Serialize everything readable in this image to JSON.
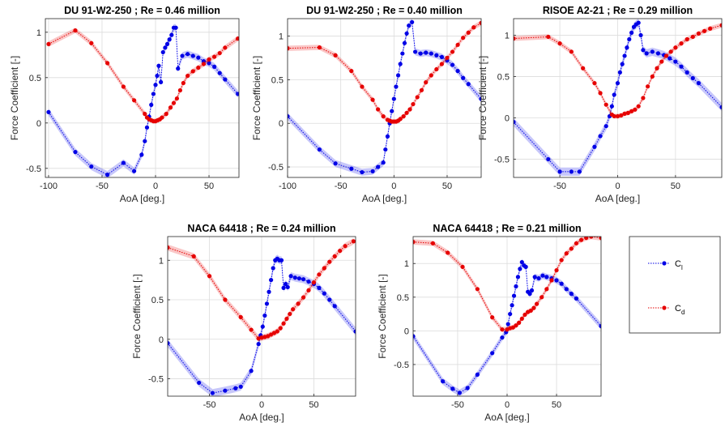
{
  "legend": {
    "entries": [
      {
        "label": "C",
        "sub": "l",
        "color": "#0000e6"
      },
      {
        "label": "C",
        "sub": "d",
        "color": "#e60000"
      }
    ]
  },
  "chart_data": [
    {
      "type": "line",
      "title": "DU 91-W2-250 ; Re = 0.46 million",
      "xlabel": "AoA [deg.]",
      "ylabel": "Force Coefficient [-]",
      "xlim": [
        -103,
        78
      ],
      "ylim": [
        -0.6,
        1.15
      ],
      "xticks": [
        -100,
        -50,
        0,
        50
      ],
      "yticks": [
        -0.5,
        0,
        0.5,
        1
      ],
      "grid": true,
      "series": [
        {
          "name": "Cl",
          "color": "#0000e6",
          "x": [
            -100,
            -75,
            -60,
            -45,
            -30,
            -20,
            -13,
            -10,
            -8,
            -6,
            -4,
            -2,
            0,
            1.5,
            3,
            5,
            7,
            9,
            11,
            13,
            15,
            17,
            19,
            21,
            25,
            30,
            35,
            40,
            45,
            50,
            55,
            60,
            65,
            77
          ],
          "y": [
            0.12,
            -0.32,
            -0.48,
            -0.57,
            -0.44,
            -0.53,
            -0.35,
            -0.2,
            -0.05,
            0.07,
            0.2,
            0.32,
            0.42,
            0.52,
            0.63,
            0.45,
            0.78,
            0.83,
            0.87,
            0.92,
            0.97,
            1.05,
            1.05,
            0.6,
            0.74,
            0.76,
            0.74,
            0.72,
            0.68,
            0.66,
            0.62,
            0.55,
            0.48,
            0.32
          ],
          "band": 0.04
        },
        {
          "name": "Cd",
          "color": "#e60000",
          "x": [
            -100,
            -75,
            -60,
            -45,
            -30,
            -20,
            -10,
            -8,
            -6,
            -4,
            -2,
            0,
            2,
            4,
            6,
            10,
            14,
            17,
            20,
            23,
            26,
            30,
            35,
            40,
            45,
            50,
            55,
            60,
            65,
            77
          ],
          "y": [
            0.87,
            1.02,
            0.88,
            0.66,
            0.4,
            0.25,
            0.1,
            0.06,
            0.04,
            0.03,
            0.02,
            0.02,
            0.03,
            0.04,
            0.06,
            0.1,
            0.17,
            0.22,
            0.27,
            0.36,
            0.44,
            0.52,
            0.57,
            0.61,
            0.65,
            0.7,
            0.73,
            0.77,
            0.83,
            0.93
          ],
          "band": 0.03
        }
      ]
    },
    {
      "type": "line",
      "title": "DU 91-W2-250 ; Re = 0.40 million",
      "xlabel": "AoA [deg.]",
      "ylabel": "Force Coefficient [-]",
      "xlim": [
        -100,
        82
      ],
      "ylim": [
        -0.62,
        1.2
      ],
      "xticks": [
        -100,
        -50,
        0,
        50
      ],
      "yticks": [
        -0.5,
        0,
        0.5,
        1
      ],
      "grid": true,
      "series": [
        {
          "name": "Cl",
          "color": "#0000e6",
          "x": [
            -100,
            -70,
            -55,
            -40,
            -30,
            -20,
            -15,
            -10,
            -8,
            -6,
            -4,
            -2,
            0,
            2,
            4,
            6,
            8,
            10,
            12,
            14,
            17,
            20,
            25,
            30,
            35,
            40,
            45,
            50,
            55,
            60,
            65,
            70,
            82
          ],
          "y": [
            0.08,
            -0.3,
            -0.46,
            -0.52,
            -0.56,
            -0.55,
            -0.5,
            -0.45,
            -0.3,
            -0.15,
            0.0,
            0.14,
            0.28,
            0.42,
            0.55,
            0.68,
            0.8,
            0.92,
            1.03,
            1.12,
            1.16,
            0.82,
            0.8,
            0.81,
            0.8,
            0.78,
            0.76,
            0.72,
            0.67,
            0.6,
            0.52,
            0.45,
            0.28
          ],
          "band": 0.04
        },
        {
          "name": "Cd",
          "color": "#e60000",
          "x": [
            -100,
            -70,
            -55,
            -40,
            -30,
            -20,
            -15,
            -10,
            -6,
            -4,
            -2,
            0,
            2,
            4,
            6,
            9,
            12,
            15,
            18,
            22,
            26,
            30,
            35,
            40,
            45,
            50,
            55,
            60,
            65,
            70,
            75,
            82
          ],
          "y": [
            0.86,
            0.87,
            0.78,
            0.6,
            0.42,
            0.27,
            0.16,
            0.08,
            0.04,
            0.03,
            0.02,
            0.02,
            0.02,
            0.03,
            0.05,
            0.08,
            0.12,
            0.16,
            0.22,
            0.3,
            0.38,
            0.47,
            0.55,
            0.62,
            0.68,
            0.75,
            0.82,
            0.9,
            0.98,
            1.04,
            1.1,
            1.15
          ],
          "band": 0.03
        }
      ]
    },
    {
      "type": "line",
      "title": "RISOE A2-21 ; Re = 0.29 million",
      "xlabel": "AoA [deg.]",
      "ylabel": "Force Coefficient [-]",
      "xlim": [
        -90,
        90
      ],
      "ylim": [
        -0.72,
        1.2
      ],
      "xticks": [
        -50,
        0,
        50
      ],
      "yticks": [
        -0.5,
        0,
        0.5,
        1
      ],
      "grid": true,
      "series": [
        {
          "name": "Cl",
          "color": "#0000e6",
          "x": [
            -90,
            -60,
            -50,
            -40,
            -33,
            -20,
            -15,
            -10,
            -7,
            -5,
            -3,
            0,
            2,
            4,
            6,
            8,
            10,
            12,
            14,
            16,
            18,
            20,
            22,
            25,
            30,
            35,
            40,
            45,
            50,
            55,
            60,
            65,
            70,
            90
          ],
          "y": [
            -0.05,
            -0.5,
            -0.65,
            -0.65,
            -0.65,
            -0.35,
            -0.22,
            -0.1,
            0.02,
            0.14,
            0.28,
            0.42,
            0.55,
            0.65,
            0.75,
            0.85,
            0.95,
            1.03,
            1.1,
            1.13,
            1.15,
            1.0,
            0.82,
            0.78,
            0.8,
            0.78,
            0.76,
            0.72,
            0.68,
            0.62,
            0.55,
            0.48,
            0.42,
            0.13
          ],
          "band": 0.05
        },
        {
          "name": "Cd",
          "color": "#e60000",
          "x": [
            -90,
            -60,
            -50,
            -40,
            -30,
            -20,
            -15,
            -10,
            -5,
            -3,
            0,
            3,
            6,
            9,
            12,
            15,
            18,
            22,
            26,
            30,
            34,
            38,
            42,
            46,
            50,
            55,
            60,
            65,
            70,
            75,
            80,
            90
          ],
          "y": [
            0.96,
            0.98,
            0.9,
            0.8,
            0.6,
            0.42,
            0.3,
            0.16,
            0.04,
            0.02,
            0.02,
            0.03,
            0.05,
            0.06,
            0.08,
            0.1,
            0.14,
            0.24,
            0.38,
            0.5,
            0.6,
            0.68,
            0.75,
            0.8,
            0.85,
            0.9,
            0.95,
            0.98,
            1.02,
            1.05,
            1.08,
            1.12
          ],
          "band": 0.03
        }
      ]
    },
    {
      "type": "line",
      "title": "NACA 64418 ; Re = 0.24 million",
      "xlabel": "AoA [deg.]",
      "ylabel": "Force Coefficient [-]",
      "xlim": [
        -90,
        90
      ],
      "ylim": [
        -0.72,
        1.3
      ],
      "xticks": [
        -50,
        0,
        50
      ],
      "yticks": [
        -0.5,
        0,
        0.5,
        1
      ],
      "grid": true,
      "series": [
        {
          "name": "Cl",
          "color": "#0000e6",
          "x": [
            -90,
            -60,
            -47,
            -35,
            -25,
            -20,
            -10,
            -3,
            -1,
            1,
            3,
            5,
            7,
            9,
            11,
            13,
            15,
            17,
            19,
            21,
            23,
            25,
            28,
            32,
            36,
            40,
            45,
            50,
            55,
            60,
            65,
            70,
            90
          ],
          "y": [
            -0.05,
            -0.55,
            -0.68,
            -0.65,
            -0.62,
            -0.6,
            -0.4,
            -0.06,
            0.05,
            0.16,
            0.3,
            0.45,
            0.6,
            0.75,
            0.9,
            1.0,
            1.02,
            1.0,
            1.0,
            0.65,
            0.7,
            0.66,
            0.8,
            0.78,
            0.77,
            0.76,
            0.73,
            0.7,
            0.65,
            0.58,
            0.5,
            0.42,
            0.1
          ],
          "band": 0.05
        },
        {
          "name": "Cd",
          "color": "#e60000",
          "x": [
            -90,
            -65,
            -50,
            -35,
            -20,
            -10,
            -3,
            0,
            3,
            6,
            9,
            12,
            15,
            18,
            21,
            24,
            27,
            30,
            35,
            40,
            45,
            50,
            55,
            60,
            65,
            70,
            75,
            80,
            88
          ],
          "y": [
            1.16,
            1.05,
            0.8,
            0.5,
            0.28,
            0.12,
            0.01,
            0.02,
            0.03,
            0.04,
            0.06,
            0.08,
            0.1,
            0.14,
            0.2,
            0.26,
            0.32,
            0.38,
            0.45,
            0.53,
            0.62,
            0.72,
            0.82,
            0.9,
            0.98,
            1.05,
            1.12,
            1.18,
            1.24
          ],
          "band": 0.04
        }
      ]
    },
    {
      "type": "line",
      "title": "NACA 64418 ; Re = 0.21 million",
      "xlabel": "AoA [deg.]",
      "ylabel": "Force Coefficient [-]",
      "xlim": [
        -95,
        95
      ],
      "ylim": [
        -0.97,
        1.4
      ],
      "xticks": [
        -50,
        0,
        50
      ],
      "yticks": [
        -0.5,
        0,
        0.5,
        1
      ],
      "grid": true,
      "series": [
        {
          "name": "Cl",
          "color": "#0000e6",
          "x": [
            -95,
            -65,
            -55,
            -48,
            -40,
            -30,
            -15,
            -5,
            -1,
            1,
            3,
            5,
            7,
            9,
            11,
            13,
            15,
            17,
            19,
            21,
            23,
            25,
            28,
            32,
            36,
            40,
            45,
            50,
            55,
            60,
            65,
            70,
            95
          ],
          "y": [
            -0.08,
            -0.75,
            -0.86,
            -0.92,
            -0.85,
            -0.65,
            -0.33,
            -0.1,
            -0.02,
            0.1,
            0.25,
            0.38,
            0.52,
            0.66,
            0.8,
            0.92,
            1.02,
            0.97,
            0.95,
            0.58,
            0.55,
            0.6,
            0.8,
            0.78,
            0.82,
            0.8,
            0.78,
            0.75,
            0.7,
            0.62,
            0.55,
            0.48,
            0.07
          ],
          "band": 0.05
        },
        {
          "name": "Cd",
          "color": "#e60000",
          "x": [
            -95,
            -75,
            -60,
            -45,
            -30,
            -15,
            -5,
            0,
            3,
            6,
            9,
            12,
            15,
            18,
            21,
            24,
            27,
            30,
            35,
            40,
            45,
            50,
            55,
            60,
            65,
            70,
            75,
            80,
            85,
            95
          ],
          "y": [
            1.32,
            1.3,
            1.16,
            0.95,
            0.62,
            0.2,
            0.02,
            0.02,
            0.04,
            0.05,
            0.08,
            0.12,
            0.18,
            0.24,
            0.28,
            0.3,
            0.34,
            0.4,
            0.5,
            0.62,
            0.75,
            0.9,
            1.05,
            1.15,
            1.22,
            1.3,
            1.35,
            1.38,
            1.4,
            1.38
          ],
          "band": 0.04
        }
      ]
    }
  ]
}
